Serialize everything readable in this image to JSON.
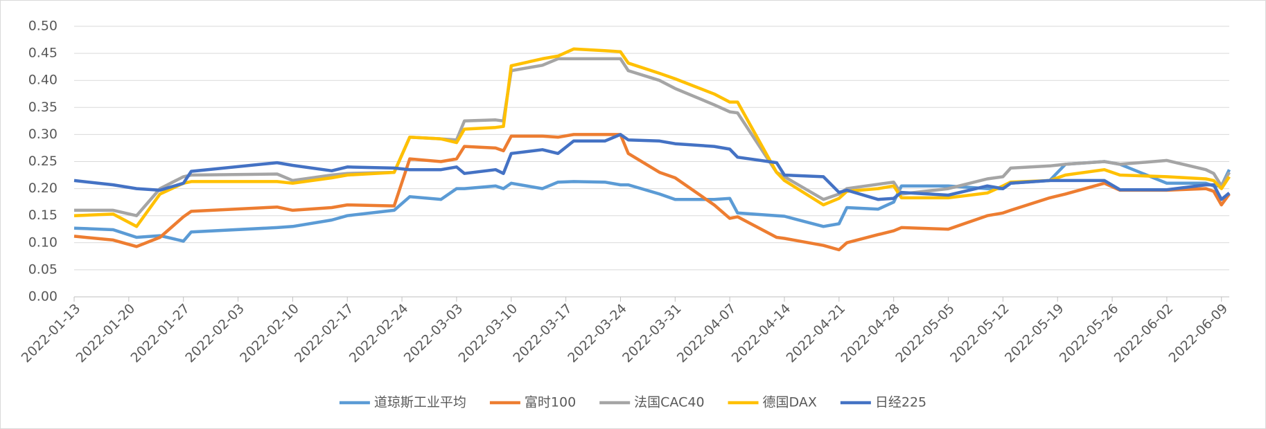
{
  "chart_data": {
    "type": "line",
    "x": [
      "2022-01-13",
      "2022-01-18",
      "2022-01-21",
      "2022-01-24",
      "2022-01-27",
      "2022-01-28",
      "2022-02-08",
      "2022-02-10",
      "2022-02-15",
      "2022-02-17",
      "2022-02-23",
      "2022-02-25",
      "2022-03-01",
      "2022-03-03",
      "2022-03-04",
      "2022-03-08",
      "2022-03-09",
      "2022-03-10",
      "2022-03-14",
      "2022-03-16",
      "2022-03-18",
      "2022-03-22",
      "2022-03-24",
      "2022-03-25",
      "2022-03-29",
      "2022-03-31",
      "2022-04-05",
      "2022-04-07",
      "2022-04-08",
      "2022-04-13",
      "2022-04-14",
      "2022-04-19",
      "2022-04-21",
      "2022-04-22",
      "2022-04-26",
      "2022-04-28",
      "2022-04-29",
      "2022-05-05",
      "2022-05-10",
      "2022-05-12",
      "2022-05-13",
      "2022-05-18",
      "2022-05-20",
      "2022-05-25",
      "2022-05-27",
      "2022-06-02",
      "2022-06-07",
      "2022-06-08",
      "2022-06-09",
      "2022-06-10"
    ],
    "series": [
      {
        "name": "道琼斯工业平均",
        "color": "#5b9bd5",
        "values": [
          0.127,
          0.124,
          0.11,
          0.113,
          0.103,
          0.12,
          0.128,
          0.13,
          0.142,
          0.15,
          0.16,
          0.185,
          0.18,
          0.2,
          0.2,
          0.205,
          0.2,
          0.21,
          0.2,
          0.212,
          0.213,
          0.212,
          0.207,
          0.207,
          0.19,
          0.18,
          0.18,
          0.182,
          0.155,
          0.15,
          0.149,
          0.13,
          0.135,
          0.165,
          0.162,
          0.175,
          0.205,
          0.205,
          0.2,
          0.2,
          0.21,
          0.215,
          0.245,
          0.25,
          0.245,
          0.21,
          0.21,
          0.205,
          0.205,
          0.235
        ]
      },
      {
        "name": "富时100",
        "color": "#ed7d31",
        "values": [
          0.112,
          0.105,
          0.093,
          0.11,
          0.148,
          0.158,
          0.166,
          0.16,
          0.165,
          0.17,
          0.168,
          0.255,
          0.25,
          0.255,
          0.278,
          0.275,
          0.27,
          0.297,
          0.297,
          0.295,
          0.3,
          0.3,
          0.3,
          0.265,
          0.23,
          0.22,
          0.17,
          0.145,
          0.148,
          0.11,
          0.108,
          0.095,
          0.087,
          0.1,
          0.115,
          0.122,
          0.128,
          0.125,
          0.15,
          0.155,
          0.16,
          0.183,
          0.19,
          0.21,
          0.197,
          0.197,
          0.2,
          0.195,
          0.17,
          0.19
        ]
      },
      {
        "name": "法国CAC40",
        "color": "#a5a5a5",
        "values": [
          0.16,
          0.16,
          0.15,
          0.2,
          0.222,
          0.225,
          0.227,
          0.215,
          0.225,
          0.228,
          0.23,
          0.295,
          0.292,
          0.29,
          0.325,
          0.327,
          0.325,
          0.418,
          0.428,
          0.44,
          0.44,
          0.44,
          0.44,
          0.418,
          0.4,
          0.385,
          0.355,
          0.342,
          0.34,
          0.23,
          0.222,
          0.18,
          0.19,
          0.2,
          0.208,
          0.212,
          0.19,
          0.2,
          0.218,
          0.222,
          0.238,
          0.242,
          0.245,
          0.25,
          0.245,
          0.252,
          0.235,
          0.228,
          0.205,
          0.23
        ]
      },
      {
        "name": "德国DAX",
        "color": "#ffc000",
        "values": [
          0.15,
          0.153,
          0.13,
          0.19,
          0.21,
          0.213,
          0.213,
          0.21,
          0.22,
          0.225,
          0.23,
          0.295,
          0.292,
          0.285,
          0.31,
          0.313,
          0.315,
          0.427,
          0.44,
          0.445,
          0.458,
          0.455,
          0.453,
          0.432,
          0.413,
          0.403,
          0.375,
          0.36,
          0.36,
          0.23,
          0.215,
          0.17,
          0.182,
          0.195,
          0.2,
          0.205,
          0.183,
          0.183,
          0.192,
          0.205,
          0.212,
          0.215,
          0.225,
          0.235,
          0.225,
          0.222,
          0.218,
          0.215,
          0.2,
          0.222
        ]
      },
      {
        "name": "日经225",
        "color": "#4472c4",
        "values": [
          0.215,
          0.207,
          0.2,
          0.197,
          0.21,
          0.232,
          0.248,
          0.243,
          0.233,
          0.24,
          0.238,
          0.235,
          0.235,
          0.24,
          0.228,
          0.235,
          0.228,
          0.265,
          0.272,
          0.265,
          0.288,
          0.288,
          0.3,
          0.29,
          0.288,
          0.283,
          0.278,
          0.273,
          0.258,
          0.248,
          0.225,
          0.222,
          0.193,
          0.197,
          0.18,
          0.182,
          0.193,
          0.188,
          0.205,
          0.2,
          0.21,
          0.215,
          0.215,
          0.215,
          0.198,
          0.198,
          0.207,
          0.207,
          0.18,
          0.192
        ]
      }
    ],
    "xlim": [
      "2022-01-13",
      "2022-06-10"
    ],
    "xticks": [
      "2022-01-13",
      "2022-01-20",
      "2022-01-27",
      "2022-02-03",
      "2022-02-10",
      "2022-02-17",
      "2022-02-24",
      "2022-03-03",
      "2022-03-10",
      "2022-03-17",
      "2022-03-24",
      "2022-03-31",
      "2022-04-07",
      "2022-04-14",
      "2022-04-21",
      "2022-04-28",
      "2022-05-05",
      "2022-05-12",
      "2022-05-19",
      "2022-05-26",
      "2022-06-02",
      "2022-06-09"
    ],
    "ylim": [
      0,
      0.5
    ],
    "yticks": [
      {
        "value": 0,
        "label": "0.00"
      },
      {
        "value": 0.05,
        "label": "0.05"
      },
      {
        "value": 0.1,
        "label": "0.10"
      },
      {
        "value": 0.15,
        "label": "0.15"
      },
      {
        "value": 0.2,
        "label": "0.20"
      },
      {
        "value": 0.25,
        "label": "0.25"
      },
      {
        "value": 0.3,
        "label": "0.30"
      },
      {
        "value": 0.35,
        "label": "0.35"
      },
      {
        "value": 0.4,
        "label": "0.40"
      },
      {
        "value": 0.45,
        "label": "0.45"
      },
      {
        "value": 0.5,
        "label": "0.50"
      }
    ],
    "grid": true,
    "legend": "bottom"
  }
}
